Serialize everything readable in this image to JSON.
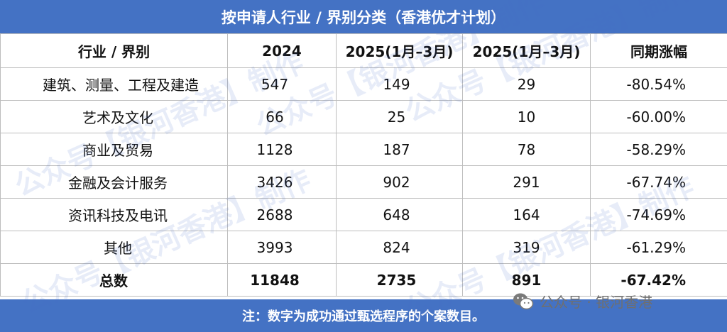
{
  "title": "按申请人行业 / 界别分类（香港优才计划）",
  "columns": [
    "行业 / 界别",
    "2024",
    "2025(1月–3月)",
    "2025(1月–3月)",
    "同期涨幅"
  ],
  "rows": [
    {
      "category": "建筑、测量、工程及建造",
      "y2024": "547",
      "y2025a": "149",
      "y2025b": "29",
      "change": "-80.54%"
    },
    {
      "category": "艺术及文化",
      "y2024": "66",
      "y2025a": "25",
      "y2025b": "10",
      "change": "-60.00%"
    },
    {
      "category": "商业及贸易",
      "y2024": "1128",
      "y2025a": "187",
      "y2025b": "78",
      "change": "-58.29%"
    },
    {
      "category": "金融及会计服务",
      "y2024": "3426",
      "y2025a": "902",
      "y2025b": "291",
      "change": "-67.74%"
    },
    {
      "category": "资讯科技及电讯",
      "y2024": "2688",
      "y2025a": "648",
      "y2025b": "164",
      "change": "-74.69%"
    },
    {
      "category": "其他",
      "y2024": "3993",
      "y2025a": "824",
      "y2025b": "319",
      "change": "-61.29%"
    }
  ],
  "total": {
    "category": "总数",
    "y2024": "11848",
    "y2025a": "2735",
    "y2025b": "891",
    "change": "-67.42%"
  },
  "footer_note": "注：数字为成功通过甄选程序的个案数目。",
  "watermark_text": "公众号【银河香港】制作",
  "brand": {
    "text": "公众号 · 银河香港",
    "icon": "wechat-icon"
  },
  "colors": {
    "header_bar": "#4472c4",
    "border": "#bdbdbd",
    "text": "#111111"
  }
}
